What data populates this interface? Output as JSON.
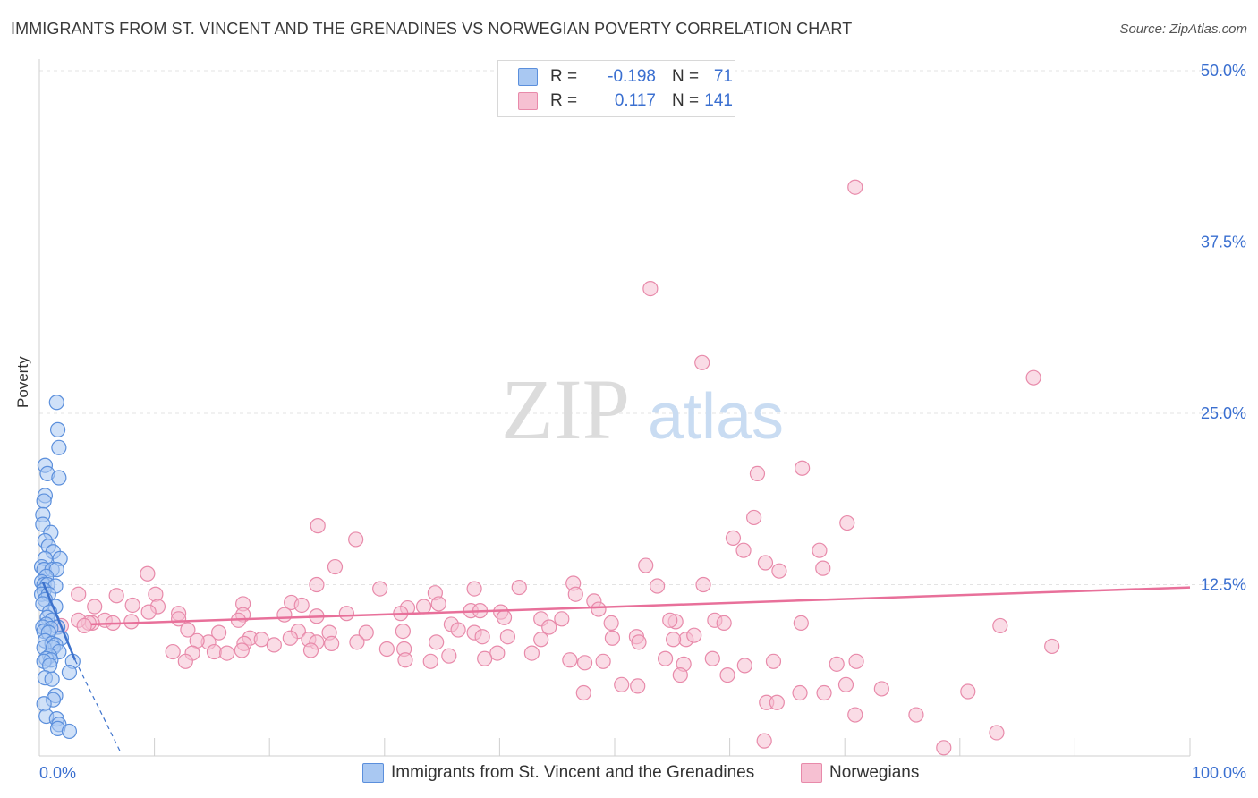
{
  "header": {
    "title": "IMMIGRANTS FROM ST. VINCENT AND THE GRENADINES VS NORWEGIAN POVERTY CORRELATION CHART",
    "source": "Source: ZipAtlas.com"
  },
  "watermark": {
    "zip": "ZIP",
    "atlas": "atlas"
  },
  "legend_top": {
    "rows": [
      {
        "r_label": "R =",
        "r_value": "-0.198",
        "n_label": "N =",
        "n_value": "71"
      },
      {
        "r_label": "R =",
        "r_value": "0.117",
        "n_label": "N =",
        "n_value": "141"
      }
    ]
  },
  "legend_bottom": {
    "items": [
      {
        "label": "Immigrants from St. Vincent and the Grenadines"
      },
      {
        "label": "Norwegians"
      }
    ]
  },
  "colors": {
    "blue_fill": "#a9c8f2",
    "blue_stroke": "#5b8fdc",
    "blue_line": "#3d72cc",
    "pink_fill": "#f6c0d2",
    "pink_stroke": "#e88aaa",
    "pink_line": "#e8709a",
    "axis_label": "#3a6fd0",
    "grid": "#e3e3e3"
  },
  "chart_data": {
    "type": "scatter",
    "title": "IMMIGRANTS FROM ST. VINCENT AND THE GRENADINES VS NORWEGIAN POVERTY CORRELATION CHART",
    "xlabel": "",
    "ylabel": "Poverty",
    "xlim": [
      0,
      100
    ],
    "ylim": [
      0,
      50
    ],
    "x_tick_labels": [
      "0.0%",
      "100.0%"
    ],
    "y_ticks": [
      12.5,
      25.0,
      37.5,
      50.0
    ],
    "y_tick_labels": [
      "12.5%",
      "25.0%",
      "37.5%",
      "50.0%"
    ],
    "grid": true,
    "legend": "bottom-center",
    "series": [
      {
        "name": "Immigrants from St. Vincent and the Grenadines",
        "R": -0.198,
        "N": 71,
        "trend": {
          "solid": [
            [
              0.3,
              12.7
            ],
            [
              3.1,
              7.0
            ]
          ],
          "dashed": [
            [
              3.1,
              7.0
            ],
            [
              7.1,
              0.2
            ]
          ]
        },
        "points": [
          [
            1.5,
            25.8
          ],
          [
            1.6,
            23.8
          ],
          [
            1.7,
            22.5
          ],
          [
            0.5,
            21.2
          ],
          [
            0.7,
            20.6
          ],
          [
            1.7,
            20.3
          ],
          [
            0.5,
            19.0
          ],
          [
            0.4,
            18.6
          ],
          [
            0.3,
            17.6
          ],
          [
            0.3,
            16.9
          ],
          [
            1.0,
            16.3
          ],
          [
            0.5,
            15.7
          ],
          [
            0.8,
            15.3
          ],
          [
            1.2,
            14.9
          ],
          [
            0.5,
            14.4
          ],
          [
            1.8,
            14.4
          ],
          [
            0.2,
            13.8
          ],
          [
            0.4,
            13.6
          ],
          [
            1.1,
            13.6
          ],
          [
            1.5,
            13.6
          ],
          [
            0.6,
            13.1
          ],
          [
            0.2,
            12.7
          ],
          [
            0.4,
            12.5
          ],
          [
            0.7,
            12.5
          ],
          [
            1.4,
            12.4
          ],
          [
            0.4,
            12.1
          ],
          [
            0.2,
            11.8
          ],
          [
            0.8,
            11.8
          ],
          [
            0.5,
            11.4
          ],
          [
            0.3,
            11.1
          ],
          [
            1.4,
            10.9
          ],
          [
            0.9,
            10.5
          ],
          [
            0.7,
            10.1
          ],
          [
            1.1,
            9.9
          ],
          [
            0.6,
            9.6
          ],
          [
            0.3,
            9.4
          ],
          [
            1.6,
            9.4
          ],
          [
            1.0,
            9.3
          ],
          [
            0.4,
            9.1
          ],
          [
            0.8,
            9.0
          ],
          [
            1.9,
            8.6
          ],
          [
            0.5,
            8.4
          ],
          [
            1.1,
            8.2
          ],
          [
            1.4,
            8.1
          ],
          [
            0.4,
            7.9
          ],
          [
            1.2,
            7.9
          ],
          [
            1.7,
            7.6
          ],
          [
            0.9,
            7.3
          ],
          [
            0.6,
            7.1
          ],
          [
            1.0,
            7.0
          ],
          [
            0.4,
            6.9
          ],
          [
            2.9,
            6.9
          ],
          [
            0.9,
            6.6
          ],
          [
            2.6,
            6.1
          ],
          [
            0.5,
            5.7
          ],
          [
            1.1,
            5.6
          ],
          [
            1.4,
            4.4
          ],
          [
            1.2,
            4.1
          ],
          [
            0.4,
            3.8
          ],
          [
            0.6,
            2.9
          ],
          [
            1.5,
            2.7
          ],
          [
            1.7,
            2.3
          ],
          [
            1.6,
            2.0
          ],
          [
            2.6,
            1.8
          ]
        ]
      },
      {
        "name": "Norwegians",
        "R": 0.117,
        "N": 141,
        "trend": {
          "solid": [
            [
              4.5,
              9.6
            ],
            [
              100.0,
              12.3
            ]
          ]
        },
        "points": [
          [
            70.9,
            41.5
          ],
          [
            53.1,
            34.1
          ],
          [
            57.6,
            28.7
          ],
          [
            86.4,
            27.6
          ],
          [
            66.3,
            21.0
          ],
          [
            62.4,
            20.6
          ],
          [
            62.1,
            17.4
          ],
          [
            24.2,
            16.8
          ],
          [
            70.2,
            17.0
          ],
          [
            27.5,
            15.8
          ],
          [
            60.3,
            15.9
          ],
          [
            67.8,
            15.0
          ],
          [
            61.2,
            15.0
          ],
          [
            63.1,
            14.1
          ],
          [
            68.1,
            13.7
          ],
          [
            25.7,
            13.8
          ],
          [
            9.4,
            13.3
          ],
          [
            52.7,
            13.9
          ],
          [
            64.3,
            13.5
          ],
          [
            24.1,
            12.5
          ],
          [
            46.4,
            12.6
          ],
          [
            53.7,
            12.4
          ],
          [
            57.7,
            12.5
          ],
          [
            37.8,
            12.2
          ],
          [
            41.7,
            12.3
          ],
          [
            29.6,
            12.2
          ],
          [
            34.4,
            11.9
          ],
          [
            46.6,
            11.8
          ],
          [
            3.4,
            11.8
          ],
          [
            10.1,
            11.8
          ],
          [
            6.7,
            11.7
          ],
          [
            17.7,
            11.1
          ],
          [
            21.9,
            11.2
          ],
          [
            34.7,
            11.1
          ],
          [
            48.2,
            11.3
          ],
          [
            22.8,
            11.0
          ],
          [
            8.1,
            11.0
          ],
          [
            4.8,
            10.9
          ],
          [
            10.3,
            10.9
          ],
          [
            33.4,
            10.9
          ],
          [
            32.0,
            10.8
          ],
          [
            37.5,
            10.6
          ],
          [
            48.6,
            10.7
          ],
          [
            40.1,
            10.5
          ],
          [
            31.4,
            10.4
          ],
          [
            9.5,
            10.5
          ],
          [
            12.1,
            10.4
          ],
          [
            17.7,
            10.3
          ],
          [
            21.3,
            10.3
          ],
          [
            24.1,
            10.2
          ],
          [
            26.7,
            10.4
          ],
          [
            38.3,
            10.6
          ],
          [
            40.4,
            10.1
          ],
          [
            45.4,
            10.0
          ],
          [
            12.1,
            10.0
          ],
          [
            17.3,
            9.9
          ],
          [
            5.7,
            9.9
          ],
          [
            1.9,
            9.5
          ],
          [
            4.6,
            9.7
          ],
          [
            8.0,
            9.8
          ],
          [
            6.4,
            9.7
          ],
          [
            4.3,
            9.7
          ],
          [
            3.4,
            9.9
          ],
          [
            3.9,
            9.5
          ],
          [
            35.8,
            9.6
          ],
          [
            49.7,
            9.7
          ],
          [
            43.6,
            10.0
          ],
          [
            55.3,
            9.8
          ],
          [
            54.8,
            9.9
          ],
          [
            58.7,
            9.9
          ],
          [
            59.5,
            9.7
          ],
          [
            66.2,
            9.7
          ],
          [
            44.3,
            9.4
          ],
          [
            25.2,
            9.0
          ],
          [
            28.4,
            9.0
          ],
          [
            31.6,
            9.1
          ],
          [
            36.4,
            9.2
          ],
          [
            15.6,
            9.0
          ],
          [
            12.9,
            9.2
          ],
          [
            22.5,
            9.1
          ],
          [
            37.8,
            9.0
          ],
          [
            40.7,
            8.7
          ],
          [
            38.5,
            8.7
          ],
          [
            43.6,
            8.5
          ],
          [
            49.8,
            8.6
          ],
          [
            51.9,
            8.7
          ],
          [
            56.2,
            8.5
          ],
          [
            56.9,
            8.8
          ],
          [
            52.1,
            8.3
          ],
          [
            55.1,
            8.5
          ],
          [
            18.3,
            8.6
          ],
          [
            19.3,
            8.5
          ],
          [
            23.4,
            8.5
          ],
          [
            21.8,
            8.6
          ],
          [
            24.1,
            8.3
          ],
          [
            14.7,
            8.3
          ],
          [
            13.7,
            8.4
          ],
          [
            17.8,
            8.2
          ],
          [
            20.4,
            8.1
          ],
          [
            25.4,
            8.2
          ],
          [
            27.6,
            8.3
          ],
          [
            34.5,
            8.3
          ],
          [
            30.2,
            7.8
          ],
          [
            31.7,
            7.8
          ],
          [
            39.8,
            7.5
          ],
          [
            42.8,
            7.5
          ],
          [
            11.6,
            7.6
          ],
          [
            13.3,
            7.5
          ],
          [
            15.2,
            7.6
          ],
          [
            16.3,
            7.5
          ],
          [
            17.6,
            7.7
          ],
          [
            23.6,
            7.7
          ],
          [
            35.6,
            7.3
          ],
          [
            38.7,
            7.1
          ],
          [
            31.8,
            7.0
          ],
          [
            34.0,
            6.9
          ],
          [
            12.7,
            6.9
          ],
          [
            46.1,
            7.0
          ],
          [
            47.4,
            6.8
          ],
          [
            49.0,
            6.9
          ],
          [
            54.4,
            7.1
          ],
          [
            58.5,
            7.1
          ],
          [
            63.8,
            6.9
          ],
          [
            71.0,
            6.9
          ],
          [
            61.3,
            6.6
          ],
          [
            56.0,
            6.7
          ],
          [
            69.3,
            6.7
          ],
          [
            55.7,
            5.9
          ],
          [
            59.8,
            5.9
          ],
          [
            52.0,
            5.1
          ],
          [
            50.6,
            5.2
          ],
          [
            47.3,
            4.6
          ],
          [
            66.1,
            4.6
          ],
          [
            63.2,
            3.9
          ],
          [
            64.1,
            3.9
          ],
          [
            70.9,
            3.0
          ],
          [
            76.2,
            3.0
          ],
          [
            63.0,
            1.1
          ],
          [
            78.6,
            0.6
          ],
          [
            88.0,
            8.0
          ],
          [
            83.5,
            9.5
          ],
          [
            70.1,
            5.2
          ],
          [
            68.2,
            4.6
          ],
          [
            83.2,
            1.7
          ],
          [
            73.2,
            4.9
          ],
          [
            80.7,
            4.7
          ]
        ]
      }
    ]
  }
}
